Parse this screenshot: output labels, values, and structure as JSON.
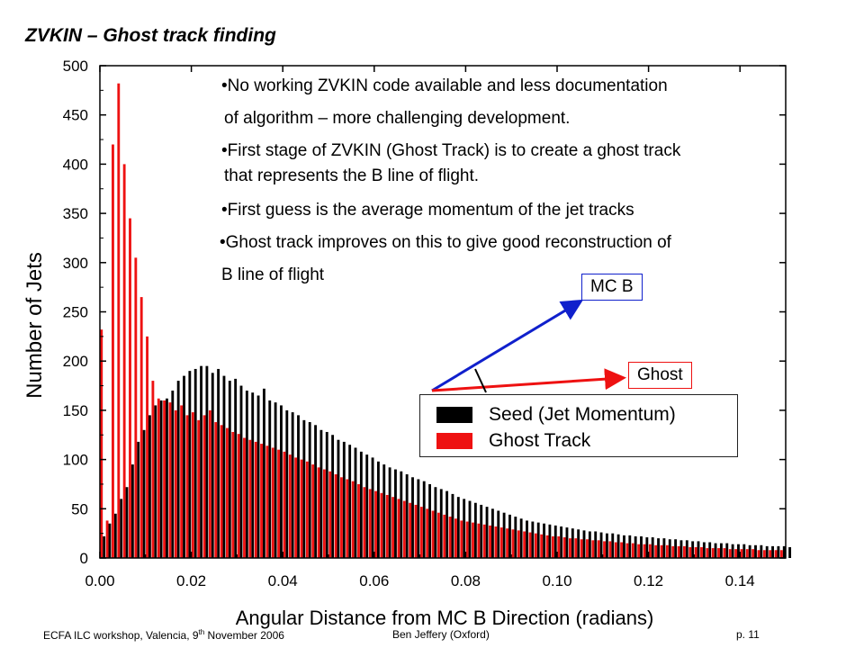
{
  "slide_title": "ZVKIN – Ghost track finding",
  "bullets": [
    "•No working ZVKIN code available and less documentation",
    "of algorithm – more challenging development.",
    "•First stage of ZVKIN (Ghost Track) is to create a ghost track",
    "that represents the B line of flight.",
    "•First guess is the average momentum of the jet tracks",
    "•Ghost track improves on this to give good reconstruction of",
    "B line of flight"
  ],
  "diagram": {
    "mcb_label": "MC B",
    "ghost_label": "Ghost",
    "mcb_color": "#1020cc",
    "ghost_color": "#ee1111"
  },
  "footer": {
    "left_pre": "ECFA ILC workshop, Valencia, 9",
    "left_sup": "th",
    "left_post": " November  2006",
    "center": "Ben Jeffery (Oxford)",
    "right": "p. 11"
  },
  "chart_data": {
    "type": "bar",
    "xlabel": "Angular Distance from MC B Direction (radians)",
    "ylabel": "Number of Jets",
    "xlim": [
      0,
      0.15
    ],
    "ylim": [
      0,
      500
    ],
    "xticks": [
      "0.00",
      "0.02",
      "0.04",
      "0.06",
      "0.08",
      "0.10",
      "0.12",
      "0.14"
    ],
    "yticks": [
      "0",
      "50",
      "100",
      "150",
      "200",
      "250",
      "300",
      "350",
      "400",
      "450",
      "500"
    ],
    "bin_width": 0.00125,
    "legend_position": "right",
    "series": [
      {
        "name": "Seed (Jet Momentum)",
        "color": "#000000",
        "values": [
          22,
          35,
          45,
          60,
          72,
          95,
          118,
          130,
          145,
          155,
          160,
          162,
          170,
          180,
          185,
          190,
          192,
          195,
          195,
          188,
          192,
          185,
          180,
          182,
          175,
          170,
          168,
          165,
          172,
          160,
          158,
          155,
          150,
          148,
          145,
          140,
          138,
          135,
          130,
          128,
          125,
          120,
          118,
          115,
          112,
          108,
          105,
          102,
          98,
          95,
          92,
          90,
          88,
          85,
          82,
          80,
          78,
          75,
          72,
          70,
          68,
          65,
          62,
          60,
          58,
          56,
          54,
          52,
          50,
          48,
          46,
          44,
          42,
          40,
          38,
          37,
          36,
          35,
          34,
          33,
          32,
          31,
          30,
          29,
          28,
          27,
          27,
          26,
          25,
          25,
          24,
          23,
          23,
          22,
          22,
          21,
          21,
          20,
          20,
          19,
          19,
          18,
          18,
          17,
          17,
          16,
          16,
          15,
          15,
          15,
          14,
          14,
          14,
          13,
          13,
          13,
          12,
          12,
          12,
          12,
          11
        ]
      },
      {
        "name": "Ghost Track",
        "color": "#ee1111",
        "values": [
          232,
          38,
          420,
          482,
          400,
          345,
          305,
          265,
          225,
          180,
          162,
          160,
          158,
          150,
          155,
          145,
          148,
          140,
          145,
          150,
          138,
          135,
          132,
          128,
          126,
          122,
          120,
          118,
          116,
          114,
          112,
          110,
          108,
          105,
          102,
          100,
          98,
          95,
          92,
          90,
          88,
          85,
          82,
          80,
          78,
          75,
          72,
          70,
          68,
          66,
          64,
          62,
          60,
          58,
          56,
          54,
          52,
          50,
          48,
          46,
          44,
          42,
          40,
          38,
          37,
          36,
          35,
          34,
          33,
          32,
          31,
          30,
          29,
          28,
          27,
          26,
          25,
          24,
          23,
          22,
          22,
          21,
          20,
          20,
          19,
          19,
          18,
          18,
          17,
          17,
          16,
          16,
          15,
          15,
          14,
          14,
          14,
          13,
          13,
          13,
          12,
          12,
          12,
          11,
          11,
          11,
          10,
          10,
          10,
          10,
          9,
          9,
          9,
          9,
          9,
          8,
          8,
          8,
          8,
          8
        ]
      }
    ]
  }
}
